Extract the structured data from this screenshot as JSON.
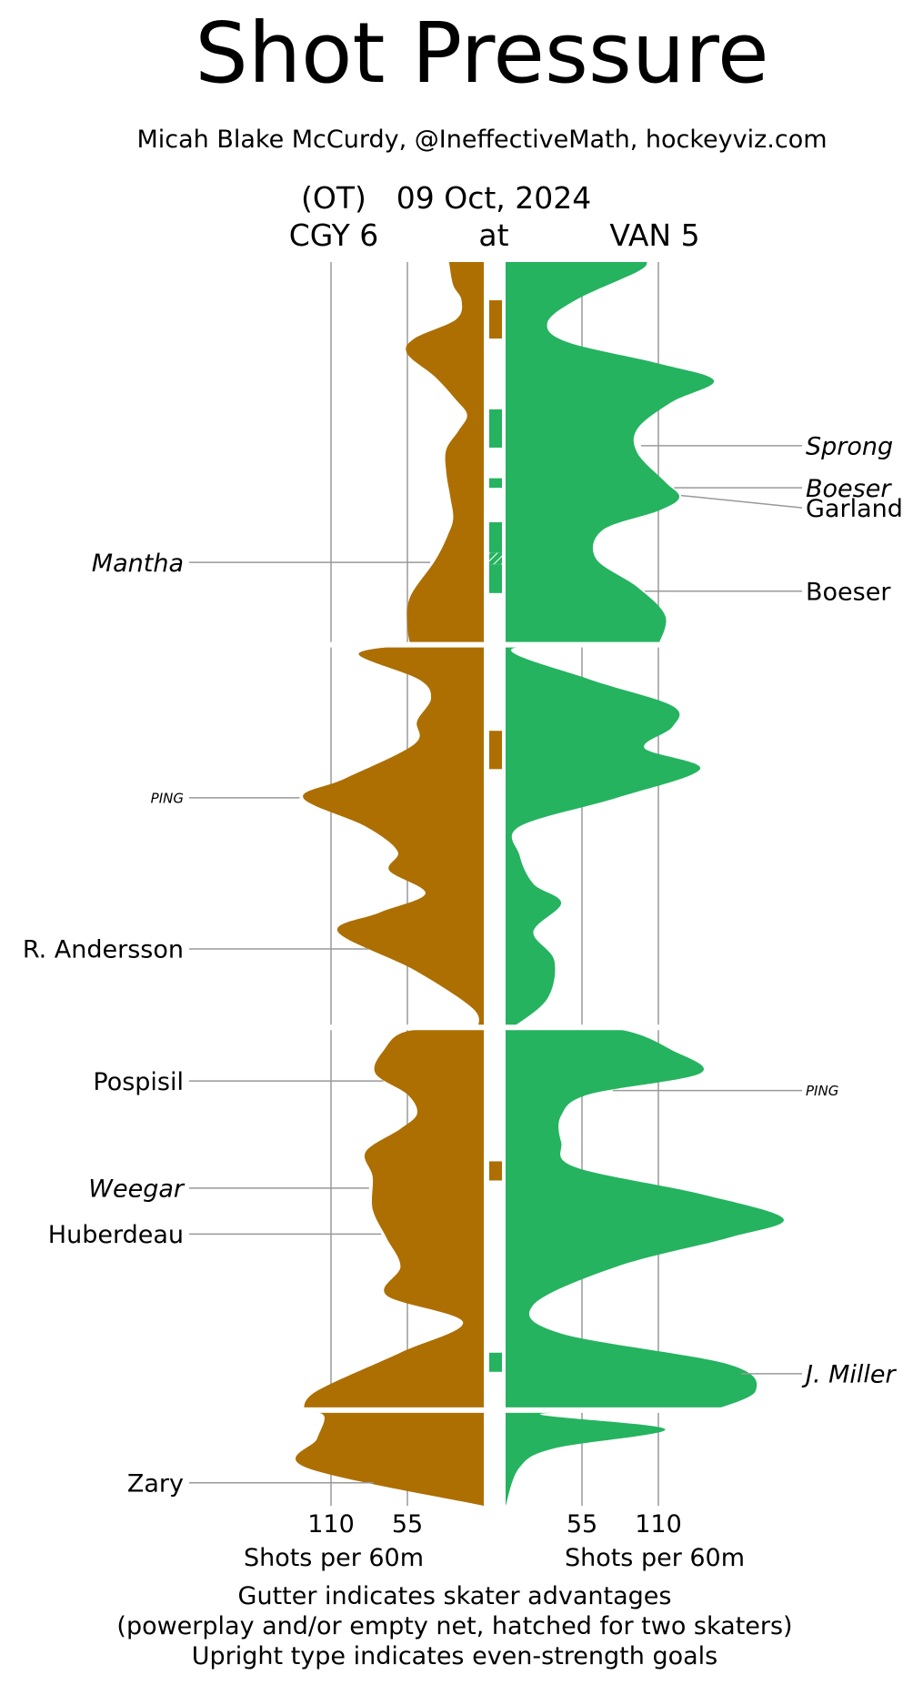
{
  "chart_data": {
    "type": "area",
    "title": "Shot Pressure",
    "subtitle": "Micah Blake McCurdy, @IneffectiveMath, hockeyviz.com",
    "header": {
      "status": "(OT)",
      "date": "09 Oct, 2024",
      "away": "CGY 6",
      "connector": "at",
      "home": "VAN 5"
    },
    "x_label": "Shots per 60m",
    "x_ticks": [
      110,
      55
    ],
    "x_max": 110,
    "footnotes": [
      "Gutter indicates skater advantages",
      "(powerplay and/or empty net, hatched for two skaters)",
      "Upright type indicates even-strength goals"
    ],
    "periods": [
      {
        "start": 0,
        "end": 20
      },
      {
        "start": 20,
        "end": 40
      },
      {
        "start": 40,
        "end": 60
      },
      {
        "start": 60,
        "end": 65
      }
    ],
    "teams": [
      {
        "name": "CGY",
        "side": "left",
        "color": "#AD6F02",
        "pressure": [
          [
            0,
            25
          ],
          [
            1.2,
            22
          ],
          [
            2.0,
            16
          ],
          [
            3.0,
            20
          ],
          [
            4.0,
            50
          ],
          [
            4.8,
            55
          ],
          [
            6.0,
            35
          ],
          [
            7.2,
            20
          ],
          [
            8.0,
            12
          ],
          [
            8.8,
            18
          ],
          [
            9.8,
            27
          ],
          [
            11.0,
            27
          ],
          [
            12.3,
            24
          ],
          [
            13.4,
            22
          ],
          [
            14.3,
            26
          ],
          [
            15.6,
            35
          ],
          [
            17.5,
            53
          ],
          [
            19.0,
            55
          ],
          [
            20,
            53
          ],
          [
            20.5,
            90
          ],
          [
            21.8,
            47
          ],
          [
            22.8,
            38
          ],
          [
            24.0,
            48
          ],
          [
            25.2,
            50
          ],
          [
            27.0,
            100
          ],
          [
            28.0,
            130
          ],
          [
            29.5,
            85
          ],
          [
            30.8,
            62
          ],
          [
            31.8,
            68
          ],
          [
            33.0,
            42
          ],
          [
            34.0,
            75
          ],
          [
            35.0,
            105
          ],
          [
            37.0,
            50
          ],
          [
            39.0,
            8
          ],
          [
            40,
            4
          ],
          [
            40.2,
            55
          ],
          [
            41.2,
            72
          ],
          [
            42.4,
            78
          ],
          [
            43.5,
            55
          ],
          [
            44.5,
            48
          ],
          [
            45.3,
            60
          ],
          [
            46.5,
            85
          ],
          [
            47.8,
            80
          ],
          [
            49.5,
            80
          ],
          [
            51.0,
            70
          ],
          [
            52.5,
            60
          ],
          [
            54.0,
            70
          ],
          [
            55.4,
            15
          ],
          [
            57.0,
            60
          ],
          [
            59.0,
            120
          ],
          [
            60,
            130
          ],
          [
            60.3,
            115
          ],
          [
            61.5,
            120
          ],
          [
            63.0,
            128
          ],
          [
            65,
            0
          ]
        ],
        "goals": [
          {
            "time": 15.7,
            "player": "Mantha",
            "even_strength": false,
            "size": "normal"
          },
          {
            "time": 28.0,
            "player": "PING",
            "even_strength": false,
            "size": "small"
          },
          {
            "time": 35.9,
            "player": "R. Andersson",
            "even_strength": true,
            "size": "normal"
          },
          {
            "time": 42.8,
            "player": "Pospisil",
            "even_strength": true,
            "size": "normal"
          },
          {
            "time": 48.4,
            "player": "Weegar",
            "even_strength": false,
            "size": "normal"
          },
          {
            "time": 50.8,
            "player": "Huberdeau",
            "even_strength": true,
            "size": "normal"
          },
          {
            "time": 63.8,
            "player": "Zary",
            "even_strength": true,
            "size": "normal"
          }
        ],
        "advantages": [
          {
            "start": 2.0,
            "end": 4.0,
            "skaters": 1
          },
          {
            "start": 24.5,
            "end": 26.5,
            "skaters": 1
          },
          {
            "start": 47.0,
            "end": 48.0,
            "skaters": 1
          }
        ]
      },
      {
        "name": "VAN",
        "side": "right",
        "color": "#25B35F",
        "pressure": [
          [
            0,
            102
          ],
          [
            0.5,
            95
          ],
          [
            2.0,
            50
          ],
          [
            3.2,
            30
          ],
          [
            4.2,
            45
          ],
          [
            5.3,
            110
          ],
          [
            6.2,
            150
          ],
          [
            7.3,
            120
          ],
          [
            8.7,
            95
          ],
          [
            10.0,
            95
          ],
          [
            11.5,
            115
          ],
          [
            12.3,
            125
          ],
          [
            13.0,
            110
          ],
          [
            14.0,
            70
          ],
          [
            15.5,
            65
          ],
          [
            17.0,
            95
          ],
          [
            18.5,
            115
          ],
          [
            20,
            110
          ],
          [
            20.2,
            5
          ],
          [
            21.8,
            60
          ],
          [
            23.2,
            120
          ],
          [
            24.3,
            120
          ],
          [
            25.4,
            100
          ],
          [
            26.5,
            140
          ],
          [
            28.0,
            80
          ],
          [
            29.5,
            10
          ],
          [
            31.0,
            10
          ],
          [
            32.5,
            20
          ],
          [
            33.5,
            40
          ],
          [
            35.0,
            20
          ],
          [
            36.5,
            35
          ],
          [
            38.5,
            30
          ],
          [
            40,
            5
          ],
          [
            40.1,
            80
          ],
          [
            41.2,
            120
          ],
          [
            42.4,
            140
          ],
          [
            43.5,
            60
          ],
          [
            44.6,
            40
          ],
          [
            46.0,
            40
          ],
          [
            47.3,
            50
          ],
          [
            48.7,
            140
          ],
          [
            50.0,
            200
          ],
          [
            51.0,
            160
          ],
          [
            52.5,
            80
          ],
          [
            54.5,
            20
          ],
          [
            56.0,
            40
          ],
          [
            57.6,
            160
          ],
          [
            59.0,
            180
          ],
          [
            60,
            150
          ],
          [
            60.2,
            25
          ],
          [
            61.0,
            115
          ],
          [
            62.0,
            35
          ],
          [
            63.0,
            10
          ],
          [
            65,
            0
          ]
        ],
        "goals": [
          {
            "time": 9.6,
            "player": "Sprong",
            "even_strength": false,
            "size": "normal"
          },
          {
            "time": 11.8,
            "player": "Boeser",
            "even_strength": false,
            "size": "normal"
          },
          {
            "time": 12.2,
            "player": "Garland",
            "even_strength": true,
            "size": "normal"
          },
          {
            "time": 17.2,
            "player": "Boeser",
            "even_strength": true,
            "size": "normal"
          },
          {
            "time": 43.3,
            "player": "PING",
            "even_strength": false,
            "size": "small"
          },
          {
            "time": 58.1,
            "player": "J. Miller",
            "even_strength": false,
            "size": "normal"
          }
        ],
        "advantages": [
          {
            "start": 7.7,
            "end": 9.7,
            "skaters": 1
          },
          {
            "start": 11.3,
            "end": 11.8,
            "skaters": 1
          },
          {
            "start": 13.6,
            "end": 15.2,
            "skaters": 1
          },
          {
            "start": 15.2,
            "end": 15.8,
            "skaters": 2
          },
          {
            "start": 15.8,
            "end": 17.3,
            "skaters": 1
          },
          {
            "start": 57.0,
            "end": 58.0,
            "skaters": 1
          }
        ]
      }
    ],
    "grid": true
  }
}
